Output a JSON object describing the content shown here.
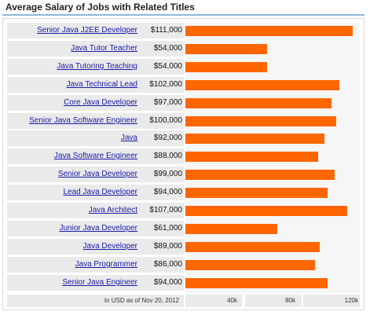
{
  "header": {
    "title": "Average Salary of Jobs with Related Titles"
  },
  "footnote": "In USD as of Nov 20, 2012",
  "colors": {
    "bar": "#ff6600",
    "link": "#1a1aa6",
    "title_rule": "#8bb8dc"
  },
  "chart_data": {
    "type": "bar",
    "orientation": "horizontal",
    "title": "Average Salary of Jobs with Related Titles",
    "categories": [
      "Senior Java J2EE Developer",
      "Java Tutor Teacher",
      "Java Tutoring Teaching",
      "Java Technical Lead",
      "Core Java Developer",
      "Senior Java Software Engineer",
      "Java",
      "Java Software Engineer",
      "Senior Java Developer",
      "Lead Java Developer",
      "Java Architect",
      "Junior Java Developer",
      "Java Developer",
      "Java Programmer",
      "Senior Java Engineer"
    ],
    "values": [
      111000,
      54000,
      54000,
      102000,
      97000,
      100000,
      92000,
      88000,
      99000,
      94000,
      107000,
      61000,
      89000,
      86000,
      94000
    ],
    "value_labels": [
      "$111,000",
      "$54,000",
      "$54,000",
      "$102,000",
      "$97,000",
      "$100,000",
      "$92,000",
      "$88,000",
      "$99,000",
      "$94,000",
      "$107,000",
      "$61,000",
      "$89,000",
      "$86,000",
      "$94,000"
    ],
    "xlim": [
      0,
      115000
    ],
    "xticks": [
      40000,
      80000,
      120000
    ],
    "xtick_labels": [
      "40k",
      "80k",
      "120k"
    ],
    "legend": "none"
  }
}
